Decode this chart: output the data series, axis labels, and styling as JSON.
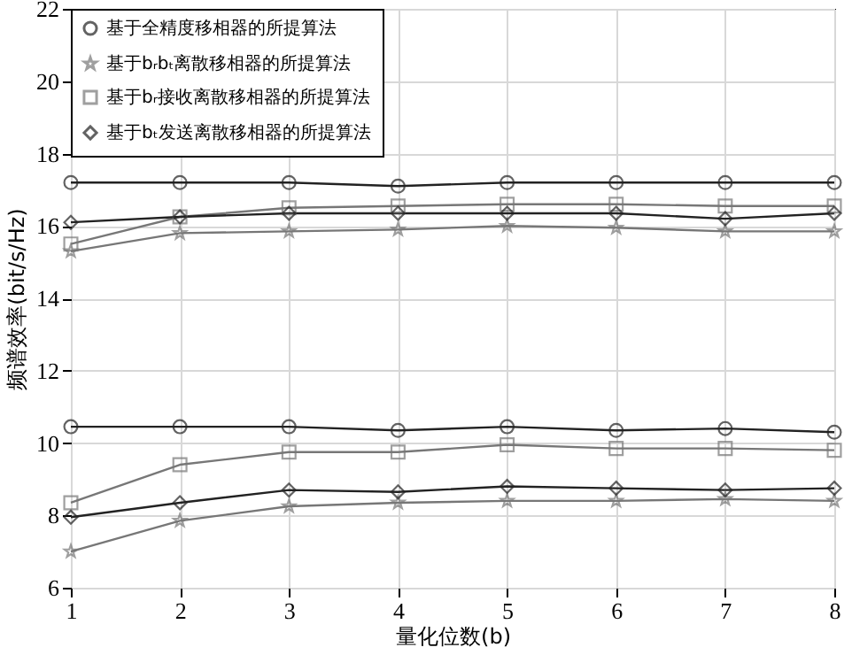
{
  "chart_data": {
    "type": "line",
    "xlabel": "量化位数(b)",
    "ylabel": "频谱效率(bit/s/Hz)",
    "x": [
      1,
      2,
      3,
      4,
      5,
      6,
      7,
      8
    ],
    "xlim": [
      1,
      8
    ],
    "xticks": [
      1,
      2,
      3,
      4,
      5,
      6,
      7,
      8
    ],
    "ylim": [
      6,
      22
    ],
    "yticks": [
      6,
      8,
      10,
      12,
      14,
      16,
      18,
      20,
      22
    ],
    "grid": true,
    "legend": "top left",
    "line_style": "solid",
    "series": [
      {
        "name": "基于全精度移相器的所提算法",
        "color": "#222222",
        "marker": "circle",
        "values": [
          17.2,
          17.2,
          17.2,
          17.1,
          17.2,
          17.2,
          17.2,
          17.2
        ]
      },
      {
        "name": "基于bᵣbₜ离散移相器的所提算法",
        "color": "#777777",
        "marker": "star",
        "values": [
          15.3,
          15.8,
          15.85,
          15.9,
          16.0,
          15.95,
          15.85,
          15.85
        ]
      },
      {
        "name": "基于bᵣ接收离散移相器的所提算法",
        "color": "#777777",
        "marker": "square",
        "values": [
          15.5,
          16.25,
          16.5,
          16.55,
          16.6,
          16.6,
          16.55,
          16.55
        ]
      },
      {
        "name": "基于bₜ发送离散移相器的所提算法",
        "color": "#222222",
        "marker": "diamond",
        "values": [
          16.1,
          16.25,
          16.35,
          16.35,
          16.35,
          16.35,
          16.2,
          16.35
        ]
      },
      {
        "color": "#222222",
        "marker": "circle",
        "values": [
          10.45,
          10.45,
          10.45,
          10.35,
          10.45,
          10.35,
          10.4,
          10.3
        ]
      },
      {
        "color": "#777777",
        "marker": "star",
        "values": [
          7.0,
          7.85,
          8.25,
          8.35,
          8.4,
          8.4,
          8.45,
          8.4
        ]
      },
      {
        "color": "#777777",
        "marker": "square",
        "values": [
          8.35,
          9.4,
          9.75,
          9.75,
          9.95,
          9.85,
          9.85,
          9.8
        ]
      },
      {
        "color": "#222222",
        "marker": "diamond",
        "values": [
          7.95,
          8.35,
          8.7,
          8.65,
          8.8,
          8.75,
          8.7,
          8.75
        ]
      }
    ]
  }
}
